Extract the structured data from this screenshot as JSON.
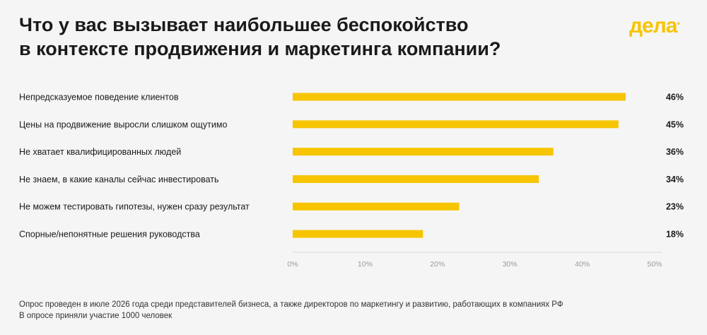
{
  "header": {
    "title_lines": [
      "Что у вас вызывает наибольшее беспокойство",
      "в контексте продвижения и маркетинга компании?"
    ],
    "logo_text": "дела",
    "logo_mark": "•"
  },
  "chart_data": {
    "type": "bar",
    "orientation": "horizontal",
    "title": "Что у вас вызывает наибольшее беспокойство в контексте продвижения и маркетинга компании?",
    "categories": [
      "Непредсказуемое поведение клиентов",
      "Цены на продвижение выросли слишком ощутимо",
      "Не хватает квалифицированных людей",
      "Не знаем, в какие каналы сейчас инвестировать",
      "Не можем тестировать гипотезы, нужен сразу результат",
      "Спорные/непонятные решения руководства"
    ],
    "values": [
      46,
      45,
      36,
      34,
      23,
      18
    ],
    "value_labels": [
      "46%",
      "45%",
      "36%",
      "34%",
      "23%",
      "18%"
    ],
    "xlim": [
      0,
      50
    ],
    "ticks": [
      0,
      10,
      20,
      30,
      40,
      50
    ],
    "tick_labels": [
      "0%",
      "10%",
      "20%",
      "30%",
      "40%",
      "50%"
    ],
    "bar_color": "#f6c500",
    "grid": false
  },
  "footnote": {
    "lines": [
      "Опрос проведен в июле 2026 года среди представителей бизнеса, а также директоров по маркетингу и развитию, работающих в компаниях РФ",
      "В опросе приняли участие 1000 человек"
    ]
  }
}
